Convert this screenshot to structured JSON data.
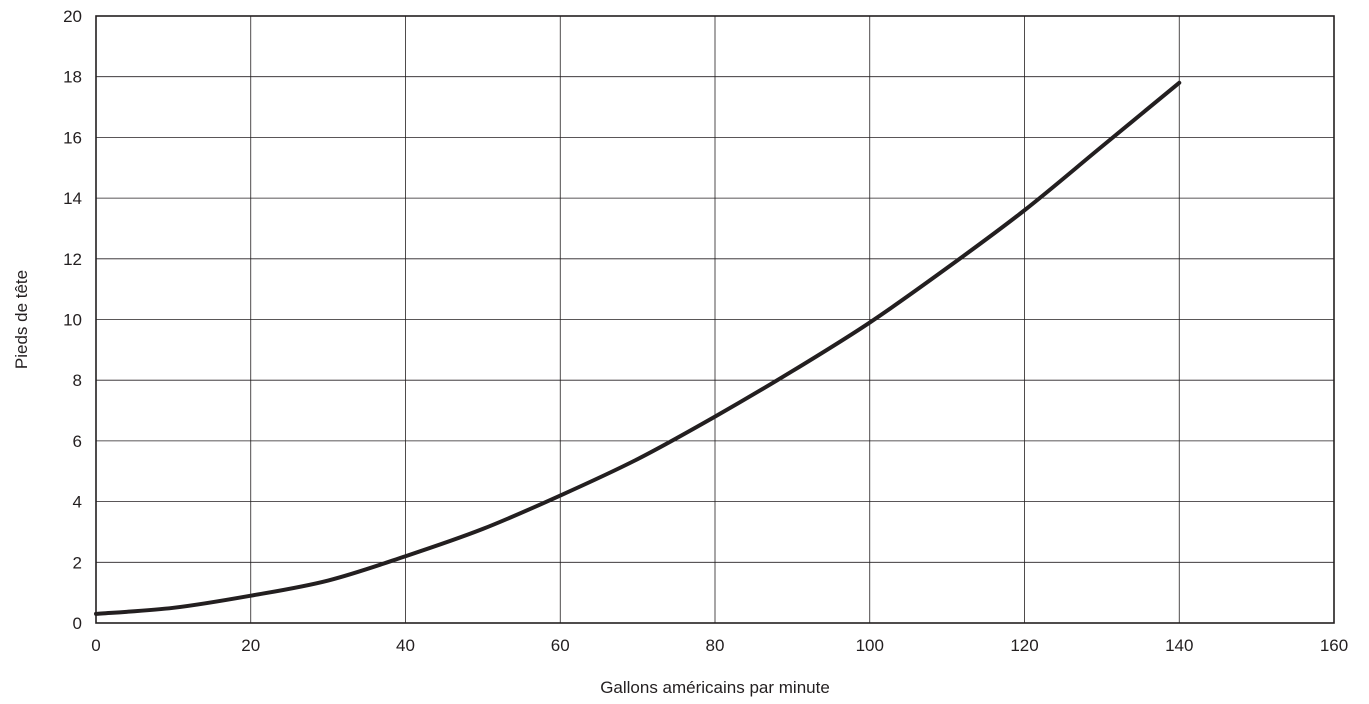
{
  "chart_data": {
    "type": "line",
    "title": "",
    "xlabel": "Gallons américains par minute",
    "ylabel": "Pieds de tête",
    "xlim": [
      0,
      160
    ],
    "ylim": [
      0,
      20
    ],
    "xticks": [
      0,
      20,
      40,
      60,
      80,
      100,
      120,
      140,
      160
    ],
    "yticks": [
      0,
      2,
      4,
      6,
      8,
      10,
      12,
      14,
      16,
      18,
      20
    ],
    "grid": true,
    "legend": "none",
    "series": [
      {
        "x": [
          0,
          10,
          20,
          30,
          40,
          50,
          60,
          70,
          80,
          90,
          100,
          110,
          120,
          130,
          140
        ],
        "y": [
          0.3,
          0.5,
          0.9,
          1.4,
          2.2,
          3.1,
          4.2,
          5.4,
          6.8,
          8.3,
          9.9,
          11.7,
          13.6,
          15.7,
          17.8
        ]
      }
    ],
    "colors": {
      "line": "#231f20",
      "grid": "#231f20",
      "text": "#231f20"
    }
  }
}
